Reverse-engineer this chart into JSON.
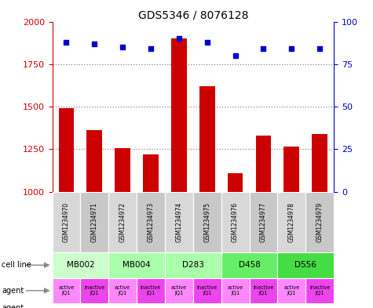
{
  "title": "GDS5346 / 8076128",
  "samples": [
    "GSM1234970",
    "GSM1234971",
    "GSM1234972",
    "GSM1234973",
    "GSM1234974",
    "GSM1234975",
    "GSM1234976",
    "GSM1234977",
    "GSM1234978",
    "GSM1234979"
  ],
  "counts": [
    1490,
    1360,
    1255,
    1220,
    1900,
    1620,
    1110,
    1330,
    1265,
    1340
  ],
  "percentiles": [
    88,
    87,
    85,
    84,
    90,
    88,
    80,
    84,
    84,
    84
  ],
  "ylim_left": [
    1000,
    2000
  ],
  "ylim_right": [
    0,
    100
  ],
  "yticks_left": [
    1000,
    1250,
    1500,
    1750,
    2000
  ],
  "yticks_right": [
    0,
    25,
    50,
    75,
    100
  ],
  "bar_color": "#cc0000",
  "scatter_color": "#0000cc",
  "cell_lines": [
    {
      "label": "MB002",
      "span": [
        0,
        2
      ],
      "color": "#ccffcc"
    },
    {
      "label": "MB004",
      "span": [
        2,
        4
      ],
      "color": "#aaffaa"
    },
    {
      "label": "D283",
      "span": [
        4,
        6
      ],
      "color": "#aaffaa"
    },
    {
      "label": "D458",
      "span": [
        6,
        8
      ],
      "color": "#66ee66"
    },
    {
      "label": "D556",
      "span": [
        8,
        10
      ],
      "color": "#44dd44"
    }
  ],
  "agents_active_color": "#ff88ff",
  "agents_inactive_color": "#ee44ee",
  "sample_bg_light": "#d8d8d8",
  "sample_bg_dark": "#c0c0c0",
  "dotted_line_color": "#888888",
  "legend_count_color": "#cc0000",
  "legend_pct_color": "#0000cc"
}
